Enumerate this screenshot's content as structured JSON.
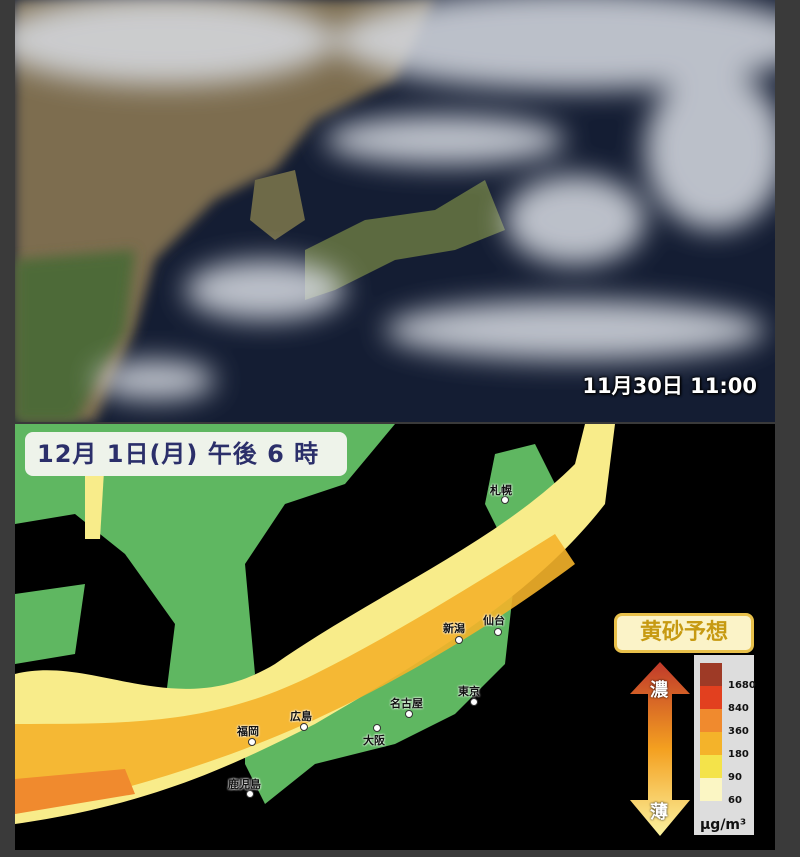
{
  "satellite": {
    "timestamp": "11月30日 11:00"
  },
  "forecast": {
    "datetime": "12月 1日(月) 午後 6 時",
    "cities": [
      "札幌",
      "新潟",
      "仙台",
      "東京",
      "名古屋",
      "大阪",
      "広島",
      "福岡",
      "鹿児島"
    ],
    "legend": {
      "title": "黄砂予想",
      "dense_label": "濃",
      "thin_label": "薄",
      "levels": [
        "1680",
        "840",
        "360",
        "180",
        "90",
        "60"
      ],
      "colors": [
        "#9e3a26",
        "#e2401f",
        "#f08a2e",
        "#f4b32a",
        "#f4e34a",
        "#fbf6c4"
      ],
      "unit": "μg/m³"
    },
    "land_color": "#5fb761"
  }
}
